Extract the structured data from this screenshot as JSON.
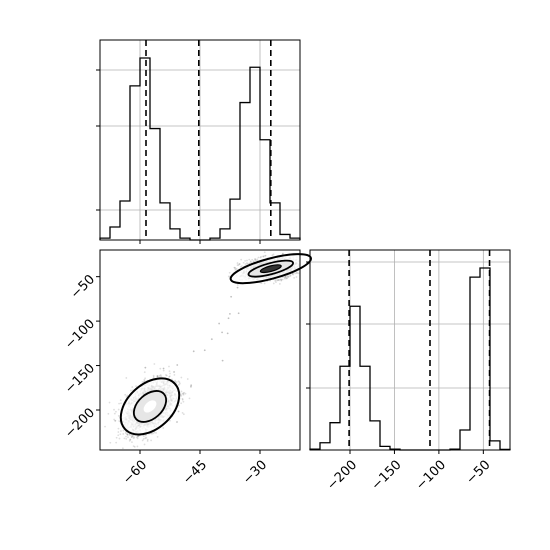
{
  "chart_data": [
    {
      "panel": "x-marginal",
      "type": "histogram",
      "xlim": [
        -70,
        -20
      ],
      "bin_edges": [
        -70,
        -67.5,
        -65,
        -62.5,
        -60,
        -57.5,
        -55,
        -52.5,
        -50,
        -47.5,
        -45,
        -42.5,
        -40,
        -37.5,
        -35,
        -32.5,
        -30,
        -27.5,
        -25,
        -22.5,
        -20
      ],
      "heights": [
        0.01,
        0.07,
        0.21,
        0.83,
        0.98,
        0.6,
        0.2,
        0.06,
        0.01,
        0,
        0,
        0.01,
        0.06,
        0.22,
        0.74,
        0.93,
        0.54,
        0.2,
        0.03,
        0.01
      ],
      "quantile_lines": [
        -58.5,
        -45.3,
        -27.3
      ],
      "x_tick_positions": [
        -60,
        -45,
        -30
      ],
      "grid": true
    },
    {
      "panel": "joint-2d",
      "type": "scatter-density",
      "xlim": [
        -70,
        -20
      ],
      "ylim": [
        -245,
        -20
      ],
      "y_tick_labels": [
        "−50",
        "−100",
        "−150",
        "−200"
      ],
      "y_tick_positions": [
        -50,
        -100,
        -150,
        -200
      ],
      "x_tick_labels": [
        "−60",
        "−45",
        "−30"
      ],
      "x_tick_positions": [
        -60,
        -45,
        -30
      ],
      "modes": [
        {
          "center": [
            -57.5,
            -196
          ],
          "sigma": [
            2.6,
            11
          ],
          "contour_levels": 2
        },
        {
          "center": [
            -27.3,
            -41
          ],
          "sigma": [
            3.2,
            5
          ],
          "contour_levels": 3
        }
      ],
      "bridge_points": true
    },
    {
      "panel": "y-marginal",
      "type": "histogram",
      "xlim": [
        -245,
        -20
      ],
      "bin_edges": [
        -245,
        -233.75,
        -222.5,
        -211.25,
        -200,
        -188.75,
        -177.5,
        -166.25,
        -155,
        -143.75,
        -132.5,
        -121.25,
        -110,
        -98.75,
        -87.5,
        -76.25,
        -65,
        -53.75,
        -42.5,
        -31.25,
        -20
      ],
      "heights": [
        0.005,
        0.04,
        0.15,
        0.46,
        0.79,
        0.46,
        0.16,
        0.02,
        0.005,
        0,
        0,
        0,
        0,
        0,
        0.005,
        0.11,
        0.95,
        1.0,
        0.05,
        0.003
      ],
      "quantile_lines": [
        -201,
        -110,
        -43
      ],
      "x_tick_labels": [
        "−200",
        "−150",
        "−100",
        "−50"
      ],
      "x_tick_positions": [
        -200,
        -150,
        -100,
        -50
      ],
      "grid": true
    }
  ],
  "colors": {
    "hist": "#000000",
    "grid": "#b0b0b0",
    "scatter": "#000000",
    "contour_fill": "#ffffff"
  }
}
